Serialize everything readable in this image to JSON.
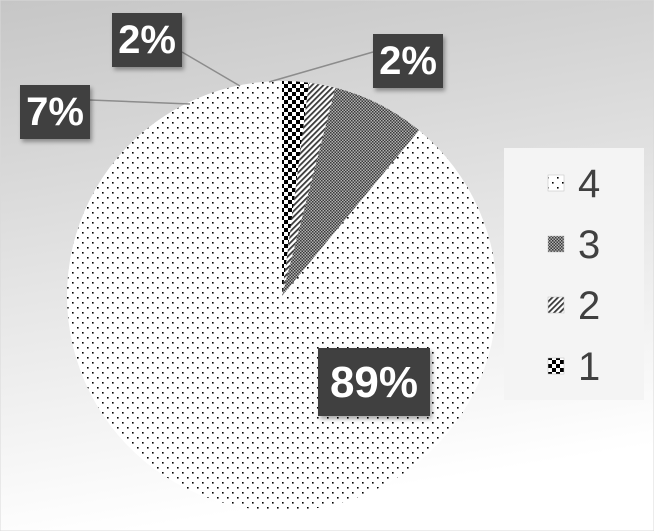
{
  "chart_data": {
    "type": "pie",
    "categories": [
      "1",
      "2",
      "3",
      "4"
    ],
    "values": [
      2,
      2,
      7,
      89
    ],
    "data_labels": [
      "2%",
      "2%",
      "7%",
      "89%"
    ],
    "legend": {
      "position": "right",
      "entries": [
        "4",
        "3",
        "2",
        "1"
      ]
    },
    "title": ""
  },
  "colors": {
    "background_top": "#c8c8c8",
    "background_bottom": "#ffffff",
    "label_box": "#3f3f3f",
    "label_text": "#ffffff",
    "legend_box": "#f4f4f4",
    "legend_text": "#404040",
    "leader_line": "#8c8c8c"
  }
}
